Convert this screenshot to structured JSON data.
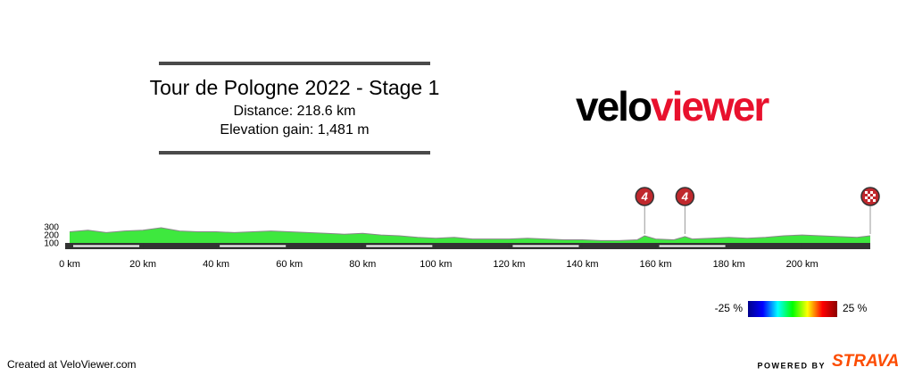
{
  "chart_data": {
    "type": "elevation",
    "title": "Tour de Pologne 2022 - Stage 1",
    "subtitle": [
      "Distance: 218.6 km",
      "Elevation gain: 1,481 m"
    ],
    "x": [
      0,
      5,
      10,
      15,
      20,
      25,
      30,
      35,
      40,
      45,
      50,
      55,
      60,
      65,
      70,
      75,
      80,
      85,
      90,
      95,
      100,
      105,
      110,
      115,
      120,
      125,
      130,
      135,
      140,
      145,
      150,
      155,
      157,
      160,
      165,
      168,
      170,
      175,
      180,
      185,
      190,
      195,
      200,
      205,
      210,
      215,
      218.6
    ],
    "values": [
      250,
      270,
      240,
      260,
      270,
      300,
      260,
      250,
      250,
      240,
      250,
      260,
      250,
      240,
      230,
      220,
      230,
      210,
      200,
      180,
      170,
      180,
      160,
      160,
      160,
      170,
      160,
      150,
      150,
      140,
      140,
      150,
      200,
      160,
      150,
      190,
      160,
      170,
      180,
      170,
      180,
      200,
      210,
      200,
      190,
      180,
      200
    ],
    "color": "#3ee83e",
    "xlim": [
      0,
      218.6
    ],
    "xticks": [
      {
        "value": 0,
        "label": "0 km"
      },
      {
        "value": 20,
        "label": "20 km"
      },
      {
        "value": 40,
        "label": "40 km"
      },
      {
        "value": 60,
        "label": "60 km"
      },
      {
        "value": 80,
        "label": "80 km"
      },
      {
        "value": 100,
        "label": "100 km"
      },
      {
        "value": 120,
        "label": "120 km"
      },
      {
        "value": 140,
        "label": "140 km"
      },
      {
        "value": 160,
        "label": "160 km"
      },
      {
        "value": 180,
        "label": "180 km"
      },
      {
        "value": 200,
        "label": "200 km"
      }
    ],
    "ylim": [
      100,
      300
    ],
    "yticks": [
      100,
      200,
      300
    ],
    "markers": [
      {
        "x": 157,
        "label": "4"
      },
      {
        "x": 168,
        "label": "4"
      },
      {
        "x": 218.6
      }
    ],
    "gradient_labels": [
      "-25 %",
      "25 %"
    ],
    "gradient_colors": [
      "#00008b",
      "#0000ff",
      "#00ffff",
      "#00ff00",
      "#ffff00",
      "#ff0000",
      "#8b0000"
    ]
  },
  "logo": [
    "velo",
    "viewer"
  ],
  "footer": {
    "credit": "Created at VeloViewer.com",
    "powered_by": "POWERED BY",
    "brand": "STRAVA"
  }
}
